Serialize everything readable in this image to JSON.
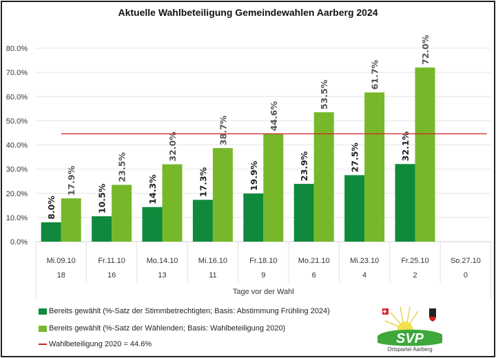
{
  "chart_data": {
    "type": "bar",
    "title": "Aktuelle Wahlbeteiligung Gemeindewahlen Aarberg 2024",
    "xlabel": "Tage vor der Wahl",
    "categories": [
      "Mi.09.10",
      "Fr.11.10",
      "Mo.14.10",
      "Mi.16.10",
      "Fr.18.10",
      "Mo.21.10",
      "Mi.23.10",
      "Fr.25.10",
      "So.27.10"
    ],
    "days_before": [
      "18",
      "16",
      "13",
      "11",
      "9",
      "6",
      "4",
      "2",
      "0"
    ],
    "series": [
      {
        "name": "Bereits gewählt (%-Satz der Stimmbetrechtigten; Basis: Abstimmung Frühling 2024)",
        "color": "#0f8a3c",
        "values": [
          8.0,
          10.5,
          14.3,
          17.3,
          19.9,
          23.9,
          27.5,
          32.1,
          null
        ],
        "labels": [
          "8.0%",
          "10.5%",
          "14.3%",
          "17.3%",
          "19.9%",
          "23.9%",
          "27.5%",
          "32.1%",
          ""
        ]
      },
      {
        "name": "Bereits gewählt (%-Satz der Wählenden; Basis: Wahlbeteiligung 2020)",
        "color": "#77b82a",
        "values": [
          17.9,
          23.5,
          32.0,
          38.7,
          44.6,
          53.5,
          61.7,
          72.0,
          null
        ],
        "labels": [
          "17.9%",
          "23.5%",
          "32.0%",
          "38.7%",
          "44.6%",
          "53.5%",
          "61.7%",
          "72.0%",
          ""
        ]
      }
    ],
    "reference_line": {
      "name": "Wahlbeteiligung 2020 = 44.6%",
      "value": 44.6,
      "color": "#cc1f1f"
    },
    "ylim": [
      0,
      80
    ],
    "yticks": [
      "0.0%",
      "10.0%",
      "20.0%",
      "30.0%",
      "40.0%",
      "50.0%",
      "60.0%",
      "70.0%",
      "80.0%"
    ],
    "grid": true,
    "legend_position": "bottom-left"
  },
  "logo": {
    "text": "SVP",
    "subtext": "Ortspartei Aarberg"
  }
}
